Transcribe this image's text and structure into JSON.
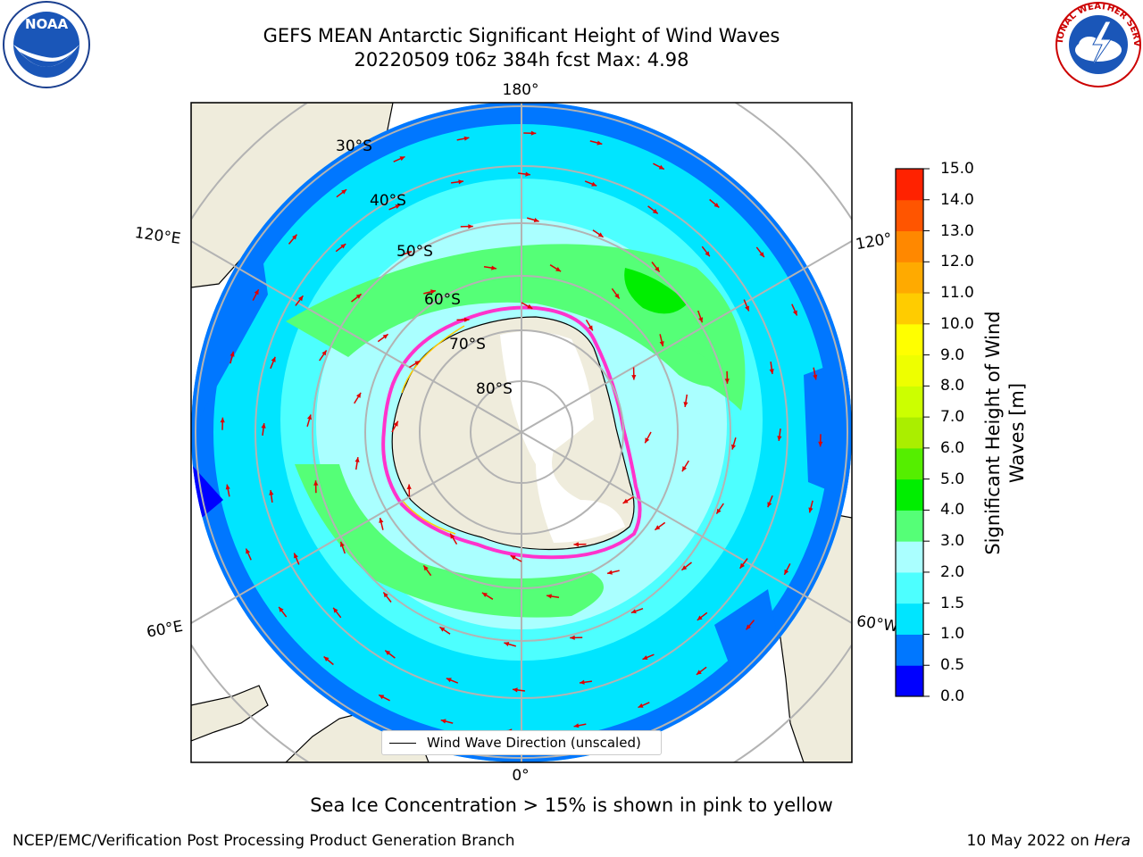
{
  "title": {
    "line1": "GEFS MEAN Antarctic Significant Height of Wind Waves",
    "line2": "20220509 t06z 384h fcst   Max: 4.98"
  },
  "map": {
    "projection": "south-polar-stereographic",
    "longitude_labels": {
      "top": "180°",
      "bottom": "0°",
      "left_upper": "120°E",
      "left_lower": "60°E",
      "right_upper": "120°",
      "right_lower": "60°W"
    },
    "latitude_labels": [
      "30°S",
      "40°S",
      "50°S",
      "60°S",
      "70°S",
      "80°S"
    ],
    "legend": {
      "label": "Wind Wave Direction (unscaled)"
    },
    "colors": {
      "land": "#efecdc",
      "ice_edge": "#ff33cc",
      "arrow": "#e00000",
      "grid": "#b3b3b3"
    }
  },
  "colorbar": {
    "label": "Significant Height of Wind Waves [m]",
    "label_line1": "Significant Height of Wind",
    "label_line2": "Waves [m]",
    "ticks": [
      "15.0",
      "14.0",
      "13.0",
      "12.0",
      "11.0",
      "10.0",
      "9.0",
      "8.0",
      "7.0",
      "6.0",
      "5.0",
      "4.0",
      "3.0",
      "2.0",
      "1.5",
      "1.0",
      "0.5",
      "0.0"
    ],
    "colors_bottom_to_top": [
      "#0000ff",
      "#0077ff",
      "#00e5ff",
      "#4dffff",
      "#aaffff",
      "#55ff77",
      "#00ee00",
      "#55ee00",
      "#aaee00",
      "#ccff00",
      "#eeff00",
      "#ffff00",
      "#ffcc00",
      "#ffaa00",
      "#ff8800",
      "#ff5500",
      "#ff2200"
    ]
  },
  "notes": {
    "sea_ice": "Sea Ice Concentration > 15% is shown in pink to yellow",
    "footer_left": "NCEP/EMC/Verification Post Processing Product Generation Branch",
    "footer_right_prefix": "10 May 2022 on ",
    "footer_right_host": "Hera"
  },
  "logos": {
    "noaa": "NOAA",
    "nws": "NATIONAL WEATHER SERVICE"
  }
}
